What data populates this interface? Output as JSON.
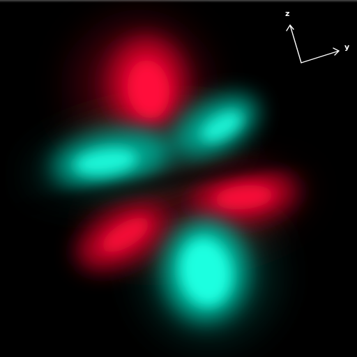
{
  "axes": {
    "z_label": "z",
    "y_label": "y"
  },
  "colors": {
    "background": "#000000",
    "positive_lobe": "#ff0a3a",
    "negative_lobe": "#1fffe0",
    "axis_color": "#ffffff"
  }
}
